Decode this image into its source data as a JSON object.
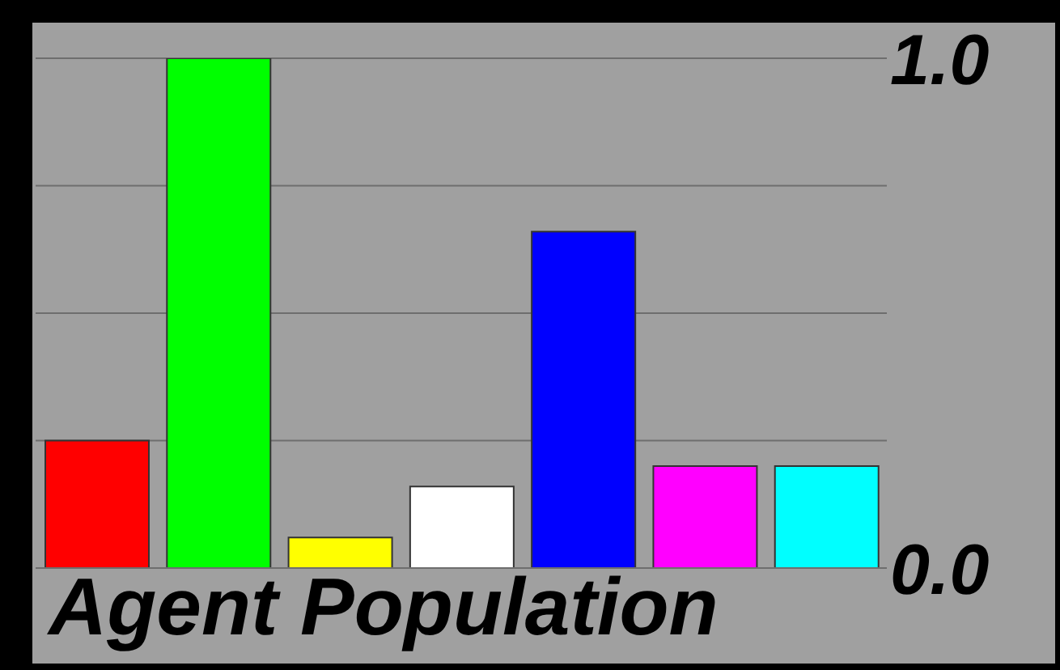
{
  "chart_data": {
    "type": "bar",
    "title": "Agent Population",
    "categories": [
      null,
      null,
      null,
      null,
      null,
      null,
      null
    ],
    "values": [
      0.25,
      1.0,
      0.06,
      0.16,
      0.66,
      0.2,
      0.2
    ],
    "colors": [
      "#ff0000",
      "#00ff00",
      "#ffff00",
      "#ffffff",
      "#0000ff",
      "#ff00ff",
      "#00ffff"
    ],
    "ylim": [
      0,
      1
    ],
    "yticks": [
      {
        "value": 0,
        "label": "0.0"
      },
      {
        "value": 0.25,
        "label": null
      },
      {
        "value": 0.5,
        "label": null
      },
      {
        "value": 0.75,
        "label": null
      },
      {
        "value": 1,
        "label": "1.0"
      }
    ],
    "grid": "y"
  }
}
